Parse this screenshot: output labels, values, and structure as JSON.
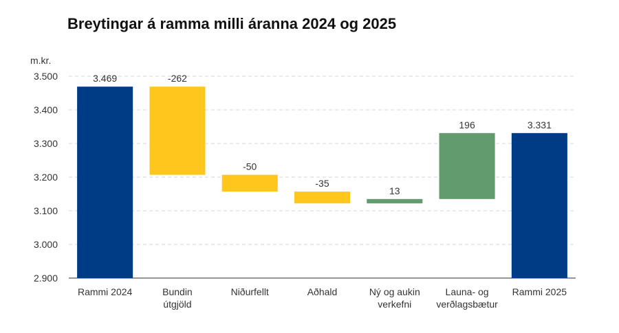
{
  "chart_data": {
    "type": "waterfall",
    "title": "Breytingar á ramma milli áranna 2024 og 2025",
    "ylabel": "m.kr.",
    "ylim": [
      2900,
      3500
    ],
    "yticks": [
      {
        "value": 2900,
        "label": "2.900"
      },
      {
        "value": 3000,
        "label": "3.000"
      },
      {
        "value": 3100,
        "label": "3.100"
      },
      {
        "value": 3200,
        "label": "3.200"
      },
      {
        "value": 3300,
        "label": "3.300"
      },
      {
        "value": 3400,
        "label": "3.400"
      },
      {
        "value": 3500,
        "label": "3.500"
      }
    ],
    "grid": true,
    "bars": [
      {
        "category": [
          "Rammi 2024"
        ],
        "kind": "total",
        "start": 2900,
        "end": 3469,
        "label": "3.469"
      },
      {
        "category": [
          "Bundin",
          "útgjöld"
        ],
        "kind": "decrease",
        "start": 3469,
        "end": 3207,
        "label": "-262"
      },
      {
        "category": [
          "Niðurfellt"
        ],
        "kind": "decrease",
        "start": 3207,
        "end": 3157,
        "label": "-50"
      },
      {
        "category": [
          "Aðhald"
        ],
        "kind": "decrease",
        "start": 3157,
        "end": 3122,
        "label": "-35"
      },
      {
        "category": [
          "Ný og aukin",
          "verkefni"
        ],
        "kind": "increase",
        "start": 3122,
        "end": 3135,
        "label": "13"
      },
      {
        "category": [
          "Launa- og",
          "verðlagsbætur"
        ],
        "kind": "increase",
        "start": 3135,
        "end": 3331,
        "label": "196"
      },
      {
        "category": [
          "Rammi 2025"
        ],
        "kind": "total",
        "start": 2900,
        "end": 3331,
        "label": "3.331"
      }
    ],
    "colors": {
      "total": "#003b86",
      "decrease": "#ffc61e",
      "increase": "#629b6d",
      "grid": "#d6d6d6",
      "axis": "#555555"
    }
  }
}
